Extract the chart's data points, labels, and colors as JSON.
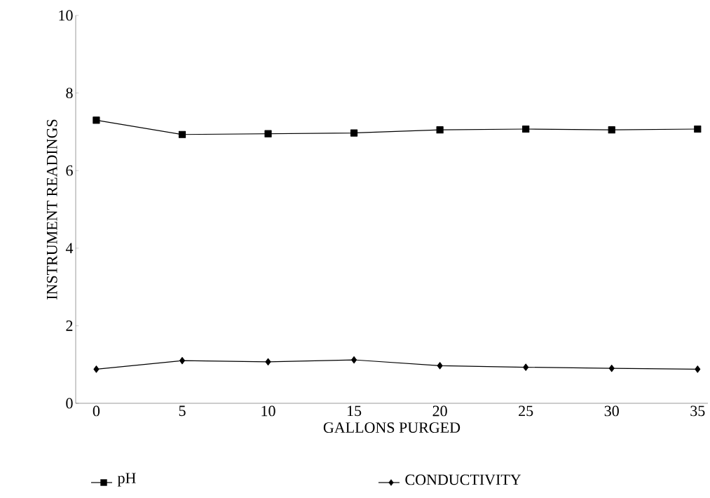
{
  "chart_data": {
    "type": "line",
    "xlabel": "GALLONS PURGED",
    "ylabel": "INSTRUMENT READINGS",
    "x": [
      0,
      5,
      10,
      15,
      20,
      25,
      30,
      35
    ],
    "series": [
      {
        "name": "pH",
        "color": "#000000",
        "marker": "square",
        "values": [
          7.3,
          6.93,
          6.95,
          6.97,
          7.05,
          7.07,
          7.05,
          7.07
        ]
      },
      {
        "name": "CONDUCTIVITY",
        "color": "#000000",
        "marker": "diamond",
        "values": [
          0.88,
          1.1,
          1.07,
          1.12,
          0.97,
          0.93,
          0.9,
          0.88
        ]
      }
    ],
    "xlim": [
      -1.2,
      35.6
    ],
    "xticks": [
      0,
      5,
      10,
      15,
      20,
      25,
      30,
      35
    ],
    "ylim": [
      0,
      10
    ],
    "yticks": [
      0,
      2,
      4,
      6,
      8,
      10
    ],
    "grid": false,
    "legend": "bottom",
    "line_style": "solid"
  }
}
